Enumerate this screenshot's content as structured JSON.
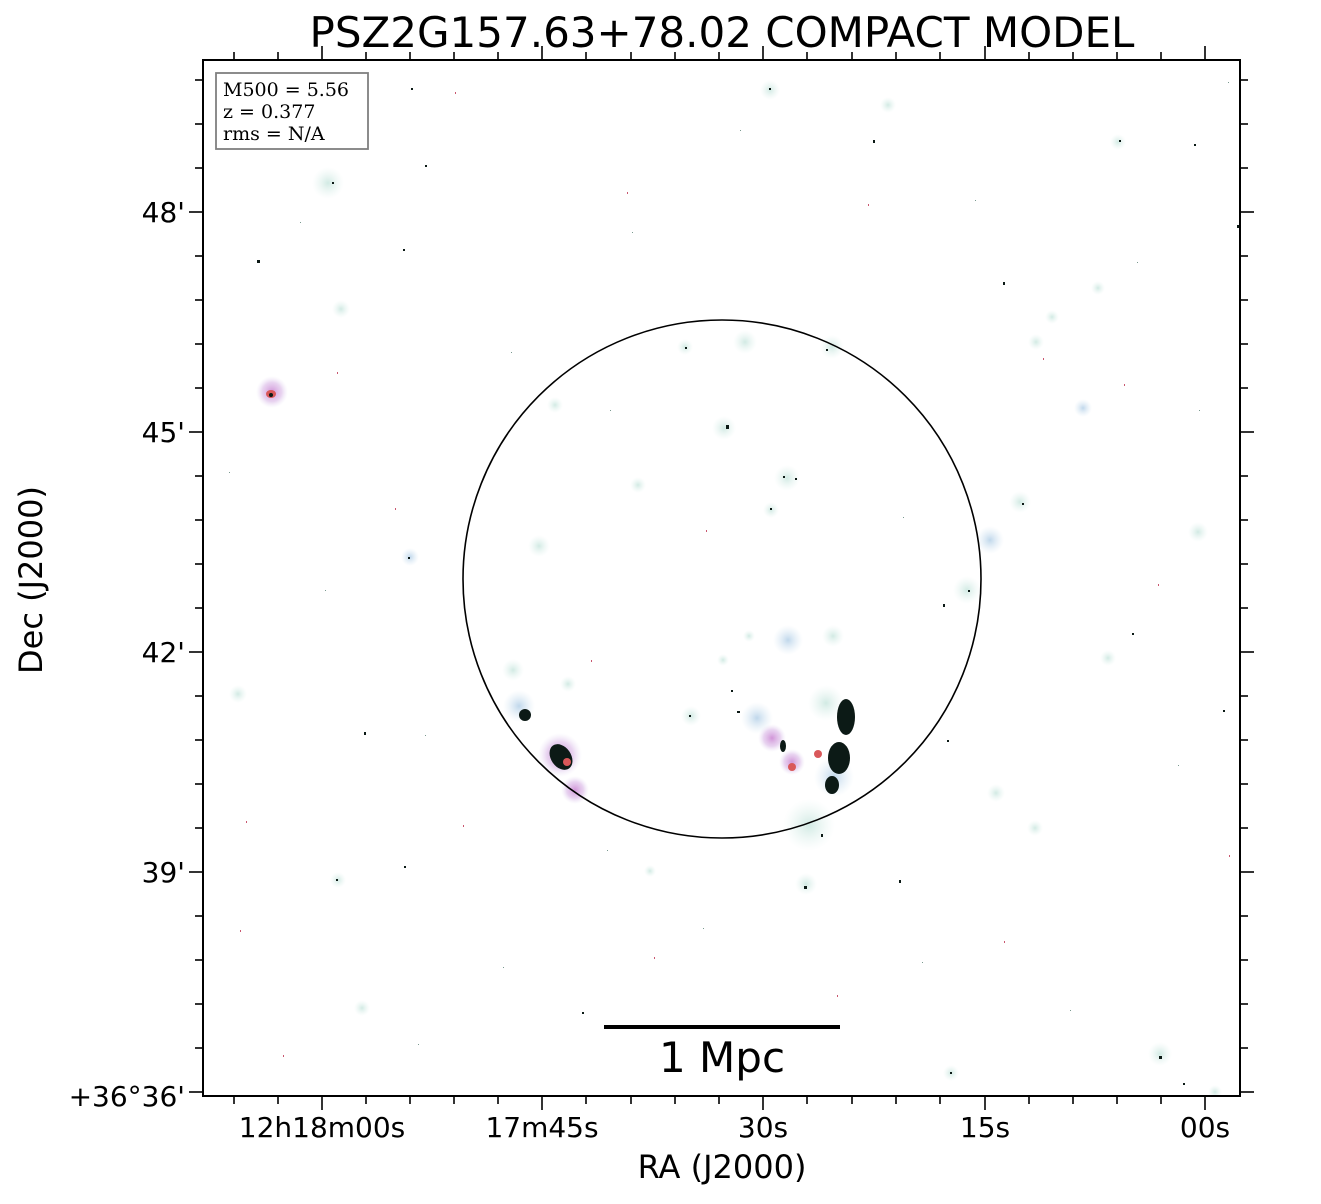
{
  "title": "PSZ2G157.63+78.02 COMPACT MODEL",
  "info_box": {
    "mass": "M500 = 5.56",
    "redshift": "z = 0.377",
    "rms": "rms = N/A"
  },
  "axes": {
    "xlabel": "RA (J2000)",
    "ylabel": "Dec (J2000)",
    "x_ticks": [
      "12h18m00s",
      "17m45s",
      "30s",
      "15s",
      "00s"
    ],
    "y_ticks": [
      "48'",
      "45'",
      "42'",
      "39'",
      "+36°36'"
    ]
  },
  "scale_bar": {
    "label": "1 Mpc"
  },
  "colors": {
    "halo": "#d3ece7",
    "blue_halo": "#c6dcec",
    "pink": "#c99ad6",
    "red": "#d9585a",
    "dark": "#0c1a16",
    "circle": "#000000"
  }
}
